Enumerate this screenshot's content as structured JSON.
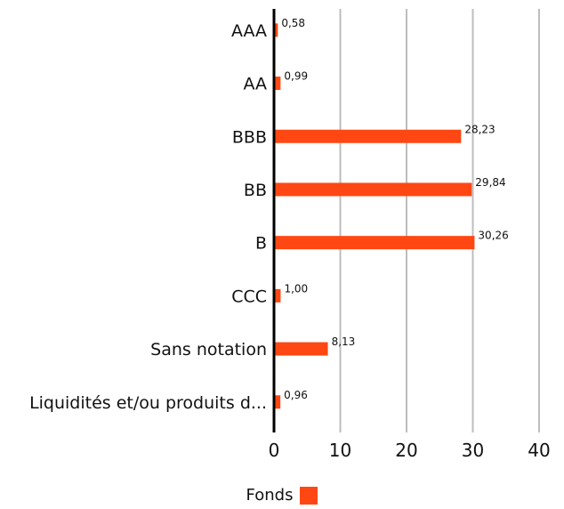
{
  "chart_data": {
    "type": "bar",
    "orientation": "horizontal",
    "categories": [
      "AAA",
      "AA",
      "BBB",
      "BB",
      "B",
      "CCC",
      "Sans notation",
      "Liquidités et/ou produits d..."
    ],
    "series": [
      {
        "name": "Fonds",
        "values": [
          0.58,
          0.99,
          28.23,
          29.84,
          30.26,
          1.0,
          8.13,
          0.96
        ],
        "labels": [
          "0,58",
          "0,99",
          "28,23",
          "29,84",
          "30,26",
          "1,00",
          "8,13",
          "0,96"
        ],
        "color": "#ff4713"
      }
    ],
    "xlim": [
      0,
      40
    ],
    "xticks": [
      0,
      10,
      20,
      30,
      40
    ],
    "grid": "vertical",
    "legend_position": "bottom"
  },
  "colors": {
    "bar": "#ff4713",
    "grid": "#bdbdbd",
    "axis": "#000000"
  }
}
